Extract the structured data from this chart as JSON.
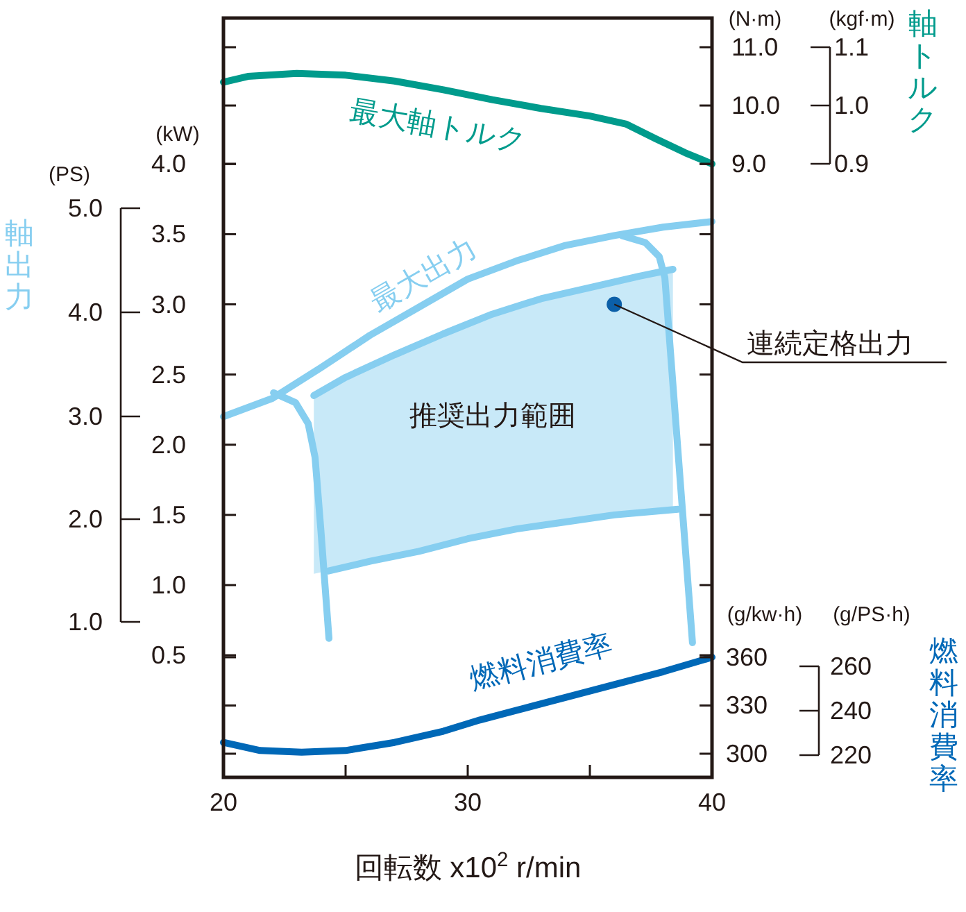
{
  "chart_data": {
    "type": "line",
    "xlabel": "回転数 x10$^{2}$ r/min",
    "ylabel": "軸出力",
    "y2label": "軸トルク",
    "y3label": "燃料消費率",
    "xlim": [
      20,
      40
    ],
    "xticks": [
      20,
      {
        "value": 25,
        "label": null
      },
      30,
      {
        "value": 35,
        "label": null
      },
      40
    ],
    "ylim": [
      -0.37,
      5.04
    ],
    "yticks": [
      {
        "value": 0.5,
        "label": "0.5"
      },
      {
        "value": 1.0,
        "label": "1.0"
      },
      {
        "value": 1.5,
        "label": "1.5"
      },
      {
        "value": 2.0,
        "label": "2.0"
      },
      {
        "value": 2.5,
        "label": "2.5"
      },
      {
        "value": 3.0,
        "label": "3.0"
      },
      {
        "value": 3.5,
        "label": "3.5"
      },
      {
        "value": 4.0,
        "label": "4.0"
      }
    ],
    "y2lim": [
      -1.52,
      11.5
    ],
    "y2ticks": [
      {
        "value": 9,
        "label": "9.0"
      },
      {
        "value": 10,
        "label": "10.0"
      },
      {
        "value": 11,
        "label": "11.0"
      }
    ],
    "y3lim": [
      285.3,
      757.6
    ],
    "y3ticks": [
      300,
      330,
      360
    ],
    "grid": false,
    "legend": false,
    "series": [
      {
        "name": "最大軸トルク",
        "axis": "y2",
        "color": "#009b8c",
        "x": [
          20,
          21,
          23,
          25,
          27,
          29,
          31,
          33,
          35,
          36.5,
          37.7,
          38.9,
          40
        ],
        "values": [
          10.4,
          10.5,
          10.55,
          10.52,
          10.42,
          10.27,
          10.1,
          9.95,
          9.82,
          9.68,
          9.43,
          9.19,
          9.0
        ]
      },
      {
        "name": "最大出力",
        "axis": "y",
        "color": "#86cef0",
        "x": [
          20,
          22,
          24,
          26,
          28,
          30,
          32,
          34,
          36,
          38,
          40
        ],
        "values": [
          2.2,
          2.33,
          2.55,
          2.78,
          2.98,
          3.18,
          3.31,
          3.42,
          3.49,
          3.55,
          3.59
        ]
      },
      {
        "axis": "y",
        "color": "#86cef0",
        "x": [
          22.05,
          22.95,
          23.47,
          23.75,
          23.98,
          24.32
        ],
        "values": [
          2.37,
          2.3,
          2.15,
          1.91,
          1.41,
          0.62
        ]
      },
      {
        "axis": "y",
        "color": "#86cef0",
        "x": [
          36.31,
          37.27,
          37.84,
          38.07,
          38.5,
          38.8,
          39.2
        ],
        "values": [
          3.49,
          3.44,
          3.34,
          3.19,
          2.2,
          1.51,
          0.59
        ]
      },
      {
        "axis": "y",
        "color": "#86cef0",
        "x": [
          23.7,
          25,
          27,
          29,
          31,
          33,
          35,
          37,
          38.4
        ],
        "values": [
          2.35,
          2.48,
          2.64,
          2.79,
          2.93,
          3.04,
          3.12,
          3.2,
          3.25
        ],
        "lower": [
          1.08,
          1.13,
          1.2,
          1.28,
          1.36,
          1.43,
          1.48,
          1.52,
          1.54
        ],
        "upper": [
          2.35,
          2.48,
          2.64,
          2.79,
          2.93,
          3.04,
          3.12,
          3.2,
          3.25
        ]
      },
      {
        "name": "燃料消費率",
        "axis": "y3",
        "color": "#0068b7",
        "x": [
          20,
          21.5,
          23.2,
          25,
          27,
          29,
          30.5,
          32,
          34,
          36,
          38,
          40
        ],
        "values": [
          307,
          302,
          301,
          302,
          307,
          314,
          321,
          327,
          335,
          343,
          351,
          360
        ]
      },
      {
        "axis": "y",
        "color": "#86cef0",
        "x": [
          24.3,
          26,
          28,
          30,
          32,
          34,
          36,
          38.6
        ],
        "values": [
          1.1,
          1.17,
          1.24,
          1.33,
          1.4,
          1.45,
          1.5,
          1.54
        ]
      },
      {
        "type": "scatter",
        "axis": "y",
        "color": "#0b5fa8",
        "marker": "circle",
        "x": [
          36.0
        ],
        "values": [
          3.0
        ]
      }
    ],
    "annotations": [
      "(kW)",
      "(PS)",
      "(N·m)",
      "(kgf·m)",
      "(g/kw·h)",
      "(g/PS·h)",
      "5.0",
      "4.0",
      "3.0",
      "2.0",
      "1.0",
      "1.1",
      "1.0",
      "0.9",
      "260",
      "240",
      "220",
      "推奨出力範囲",
      {
        "text": "連続定格出力",
        "x": 36.0,
        "y": 3.0
      }
    ]
  }
}
